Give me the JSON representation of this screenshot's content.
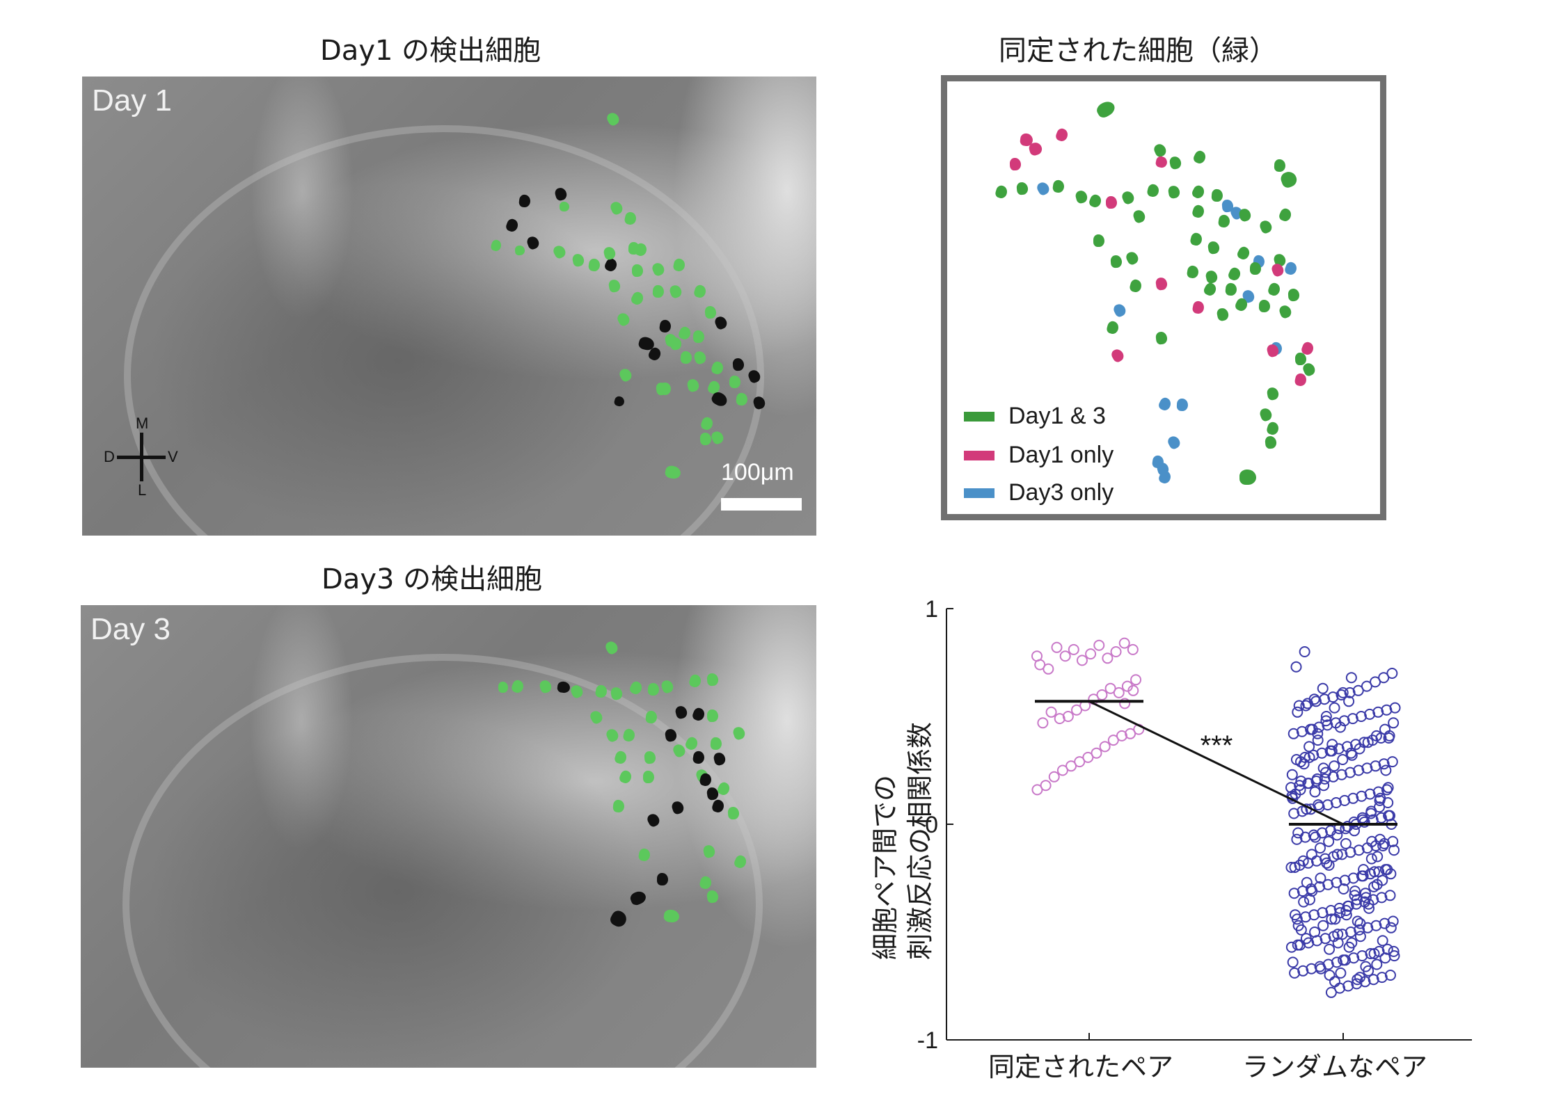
{
  "panels": {
    "day1_title": "Day1 の検出細胞",
    "day3_title": "Day3 の検出細胞",
    "identified_title": "同定された細胞（緑）",
    "day1_label": "Day 1",
    "day3_label": "Day 3",
    "scale_label": "100μm",
    "compass": {
      "m": "M",
      "d": "D",
      "v": "V",
      "l": "L"
    }
  },
  "legend": [
    {
      "label": "Day1 & 3",
      "color": "#3a9a3a"
    },
    {
      "label": "Day1 only",
      "color": "#d23a7a"
    },
    {
      "label": "Day3 only",
      "color": "#4a90c8"
    }
  ],
  "colors": {
    "identified": "#3ea23e",
    "detected_green": "#5cc85c",
    "unmatched": "#111111",
    "identified_pair_marker": "#c878c8",
    "random_pair_marker": "#3a3aa8",
    "frame": "#707070"
  },
  "chart_data": {
    "type": "scatter",
    "ylabel_line1": "細胞ペア間での",
    "ylabel_line2": "刺激反応の相関係数",
    "ylim": [
      -1,
      1
    ],
    "yticks": [
      "1",
      "0",
      "-1"
    ],
    "categories": [
      "同定されたペア",
      "ランダムなペア"
    ],
    "significance": "***",
    "means": [
      0.57,
      0.0
    ],
    "series": [
      {
        "values": [
          0.78,
          0.81,
          0.84,
          0.8,
          0.77,
          0.83,
          0.79,
          0.76,
          0.81,
          0.78,
          0.82,
          0.72,
          0.74,
          0.67,
          0.64,
          0.61,
          0.63,
          0.6,
          0.58,
          0.55,
          0.53,
          0.5,
          0.49,
          0.52,
          0.47,
          0.44,
          0.42,
          0.41,
          0.39,
          0.36,
          0.33,
          0.31,
          0.29,
          0.27,
          0.25,
          0.22,
          0.18,
          0.16,
          0.62,
          0.56
        ]
      },
      {
        "values": [
          0.8,
          0.73,
          0.7,
          0.68,
          0.66,
          0.64,
          0.62,
          0.61,
          0.6,
          0.59,
          0.58,
          0.57,
          0.56,
          0.55,
          0.54,
          0.53,
          0.52,
          0.51,
          0.5,
          0.49,
          0.48,
          0.47,
          0.46,
          0.45,
          0.44,
          0.43,
          0.42,
          0.41,
          0.4,
          0.39,
          0.38,
          0.37,
          0.36,
          0.35,
          0.34,
          0.33,
          0.32,
          0.31,
          0.3,
          0.29,
          0.28,
          0.27,
          0.26,
          0.25,
          0.24,
          0.23,
          0.22,
          0.21,
          0.2,
          0.19,
          0.18,
          0.17,
          0.16,
          0.15,
          0.14,
          0.13,
          0.12,
          0.11,
          0.1,
          0.09,
          0.08,
          0.07,
          0.06,
          0.05,
          0.04,
          0.03,
          0.02,
          0.01,
          0.0,
          -0.01,
          -0.02,
          -0.03,
          -0.04,
          -0.05,
          -0.06,
          -0.07,
          -0.08,
          -0.09,
          -0.1,
          -0.11,
          -0.12,
          -0.13,
          -0.14,
          -0.15,
          -0.16,
          -0.17,
          -0.18,
          -0.19,
          -0.2,
          -0.21,
          -0.22,
          -0.23,
          -0.24,
          -0.25,
          -0.26,
          -0.27,
          -0.28,
          -0.29,
          -0.3,
          -0.31,
          -0.32,
          -0.33,
          -0.34,
          -0.35,
          -0.36,
          -0.37,
          -0.38,
          -0.39,
          -0.4,
          -0.41,
          -0.42,
          -0.43,
          -0.44,
          -0.45,
          -0.46,
          -0.47,
          -0.48,
          -0.49,
          -0.5,
          -0.51,
          -0.52,
          -0.53,
          -0.54,
          -0.55,
          -0.56,
          -0.57,
          -0.58,
          -0.59,
          -0.6,
          -0.61,
          -0.62,
          -0.63,
          -0.64,
          -0.65,
          -0.66,
          -0.67,
          -0.68,
          -0.69,
          -0.7,
          -0.71,
          -0.72,
          -0.73,
          -0.74,
          -0.75,
          -0.76,
          -0.78,
          0.63,
          0.58,
          0.55,
          0.52,
          0.47,
          0.44,
          0.41,
          0.38,
          0.35,
          0.33,
          0.3,
          0.27,
          0.24,
          0.21,
          0.19,
          0.16,
          0.13,
          0.1,
          0.08,
          0.05,
          0.03,
          0.01,
          -0.02,
          -0.05,
          -0.08,
          -0.11,
          -0.14,
          -0.17,
          -0.2,
          -0.23,
          -0.26,
          -0.29,
          -0.32,
          -0.35,
          -0.38,
          -0.41,
          -0.44,
          -0.47,
          -0.5,
          -0.53,
          -0.56,
          -0.59,
          -0.62,
          -0.65,
          -0.68,
          -0.71,
          0.68,
          0.61,
          0.54,
          0.48,
          0.42,
          0.36,
          0.29,
          0.23,
          0.17,
          0.11,
          0.06,
          0.02,
          -0.03,
          -0.09,
          -0.14,
          -0.19,
          -0.25,
          -0.31,
          -0.36,
          -0.42,
          -0.48,
          -0.54,
          -0.6,
          -0.66,
          -0.72,
          0.57,
          0.45,
          0.34,
          0.26,
          0.15,
          0.07,
          -0.04,
          -0.12,
          -0.21,
          -0.28,
          -0.37,
          -0.46,
          -0.55,
          -0.63,
          -0.73,
          0.5,
          0.39,
          0.31,
          0.2,
          0.12,
          0.04,
          -0.07,
          -0.16,
          -0.24,
          -0.33,
          -0.4,
          -0.51,
          -0.58,
          -0.67,
          0.44,
          0.28,
          0.14,
          0.0,
          -0.1,
          -0.22,
          -0.34,
          -0.45,
          -0.57,
          -0.69,
          0.37,
          0.18,
          -0.06,
          -0.27,
          -0.47,
          -0.61,
          0.25,
          -0.15,
          -0.39,
          -0.52,
          0.32,
          -0.3,
          -0.44,
          -0.18,
          0.09,
          -0.35,
          -0.49,
          -0.64,
          0.4,
          0.12,
          -0.08,
          -0.21,
          -0.31,
          -0.42,
          -0.55,
          -0.7
        ]
      }
    ]
  }
}
